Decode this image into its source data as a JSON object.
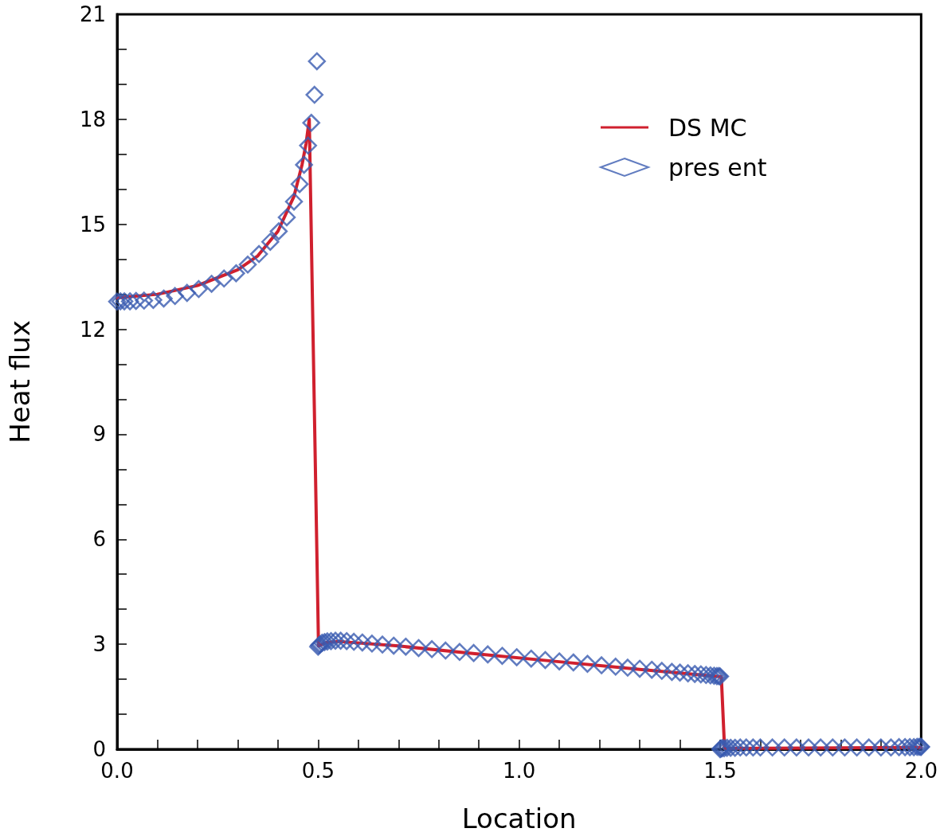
{
  "chart_data": {
    "type": "line",
    "xlabel": "Location",
    "ylabel": "Heat flux",
    "xlim": [
      0,
      2
    ],
    "xticks": [
      {
        "value": 0,
        "label": "0.0"
      },
      {
        "value": 0.1,
        "label": null
      },
      {
        "value": 0.2,
        "label": null
      },
      {
        "value": 0.3,
        "label": null
      },
      {
        "value": 0.4,
        "label": null
      },
      {
        "value": 0.5,
        "label": "0.5"
      },
      {
        "value": 0.6,
        "label": null
      },
      {
        "value": 0.7,
        "label": null
      },
      {
        "value": 0.8,
        "label": null
      },
      {
        "value": 0.9,
        "label": null
      },
      {
        "value": 1,
        "label": "1.0"
      },
      {
        "value": 1.1,
        "label": null
      },
      {
        "value": 1.2,
        "label": null
      },
      {
        "value": 1.3,
        "label": null
      },
      {
        "value": 1.4,
        "label": null
      },
      {
        "value": 1.5,
        "label": "1.5"
      },
      {
        "value": 1.6,
        "label": null
      },
      {
        "value": 1.7,
        "label": null
      },
      {
        "value": 1.8,
        "label": null
      },
      {
        "value": 1.9,
        "label": null
      },
      {
        "value": 2,
        "label": "2.0"
      }
    ],
    "ylim": [
      0,
      21
    ],
    "yticks": [
      0,
      {
        "value": 1,
        "label": null
      },
      {
        "value": 2,
        "label": null
      },
      3,
      {
        "value": 4,
        "label": null
      },
      {
        "value": 5,
        "label": null
      },
      6,
      {
        "value": 7,
        "label": null
      },
      {
        "value": 8,
        "label": null
      },
      9,
      {
        "value": 10,
        "label": null
      },
      {
        "value": 11,
        "label": null
      },
      12,
      {
        "value": 13,
        "label": null
      },
      {
        "value": 14,
        "label": null
      },
      15,
      {
        "value": 16,
        "label": null
      },
      {
        "value": 17,
        "label": null
      },
      18,
      {
        "value": 19,
        "label": null
      },
      {
        "value": 20,
        "label": null
      },
      21
    ],
    "grid": false,
    "legend": "top right",
    "line_style": "solid",
    "series": [
      {
        "name": "DS MC",
        "marker": "none",
        "color": "#d0202e",
        "x": [
          0,
          0.1,
          0.2,
          0.3,
          0.35,
          0.4,
          0.44,
          0.46,
          0.47,
          0.478,
          0.501,
          0.52,
          0.55,
          0.7,
          0.9,
          1.1,
          1.3,
          1.503,
          1.511,
          2
        ],
        "values": [
          12.9,
          13.0,
          13.25,
          13.7,
          14.1,
          14.8,
          15.8,
          16.7,
          17.3,
          18.0,
          2.95,
          3.05,
          3.08,
          2.95,
          2.72,
          2.5,
          2.28,
          2.07,
          0.02,
          0.05
        ]
      },
      {
        "name": "pres ent",
        "type": "scatter",
        "marker": "diamond",
        "color": "#3a5bb0",
        "x": [
          0,
          0.008,
          0.018,
          0.032,
          0.047,
          0.067,
          0.09,
          0.116,
          0.144,
          0.174,
          0.203,
          0.235,
          0.266,
          0.296,
          0.325,
          0.353,
          0.381,
          0.402,
          0.422,
          0.44,
          0.454,
          0.465,
          0.475,
          0.483,
          0.491,
          0.497,
          0.5,
          0.502,
          0.505,
          0.51,
          0.516,
          0.523,
          0.532,
          0.543,
          0.556,
          0.571,
          0.589,
          0.61,
          0.634,
          0.66,
          0.688,
          0.718,
          0.75,
          0.783,
          0.817,
          0.852,
          0.887,
          0.922,
          0.958,
          0.994,
          1.03,
          1.065,
          1.1,
          1.135,
          1.17,
          1.205,
          1.24,
          1.27,
          1.3,
          1.33,
          1.355,
          1.38,
          1.4,
          1.42,
          1.437,
          1.452,
          1.465,
          1.476,
          1.485,
          1.492,
          1.497,
          1.5,
          1.5,
          1.502,
          1.505,
          1.51,
          1.517,
          1.526,
          1.537,
          1.55,
          1.565,
          1.582,
          1.6,
          1.63,
          1.66,
          1.69,
          1.72,
          1.75,
          1.78,
          1.81,
          1.84,
          1.87,
          1.9,
          1.925,
          1.945,
          1.96,
          1.972,
          1.982,
          1.99,
          1.995,
          1.999,
          2
        ],
        "values": [
          12.79,
          12.8,
          12.8,
          12.8,
          12.81,
          12.82,
          12.84,
          12.88,
          12.95,
          13.04,
          13.15,
          13.3,
          13.45,
          13.6,
          13.85,
          14.15,
          14.5,
          14.8,
          15.2,
          15.65,
          16.15,
          16.7,
          17.25,
          17.9,
          18.7,
          19.66,
          2.93,
          2.97,
          3.0,
          3.04,
          3.06,
          3.08,
          3.09,
          3.1,
          3.1,
          3.09,
          3.07,
          3.05,
          3.02,
          2.99,
          2.96,
          2.93,
          2.89,
          2.86,
          2.82,
          2.78,
          2.75,
          2.71,
          2.67,
          2.63,
          2.59,
          2.55,
          2.51,
          2.48,
          2.44,
          2.4,
          2.36,
          2.33,
          2.3,
          2.27,
          2.24,
          2.21,
          2.19,
          2.17,
          2.15,
          2.14,
          2.12,
          2.11,
          2.1,
          2.09,
          2.09,
          2.08,
          0,
          0.02,
          0.03,
          0.03,
          0.04,
          0.04,
          0.04,
          0.05,
          0.05,
          0.05,
          0.05,
          0.05,
          0.05,
          0.05,
          0.05,
          0.05,
          0.05,
          0.05,
          0.05,
          0.05,
          0.05,
          0.05,
          0.06,
          0.06,
          0.06,
          0.06,
          0.07,
          0.07,
          0.07,
          0.07
        ]
      }
    ]
  }
}
